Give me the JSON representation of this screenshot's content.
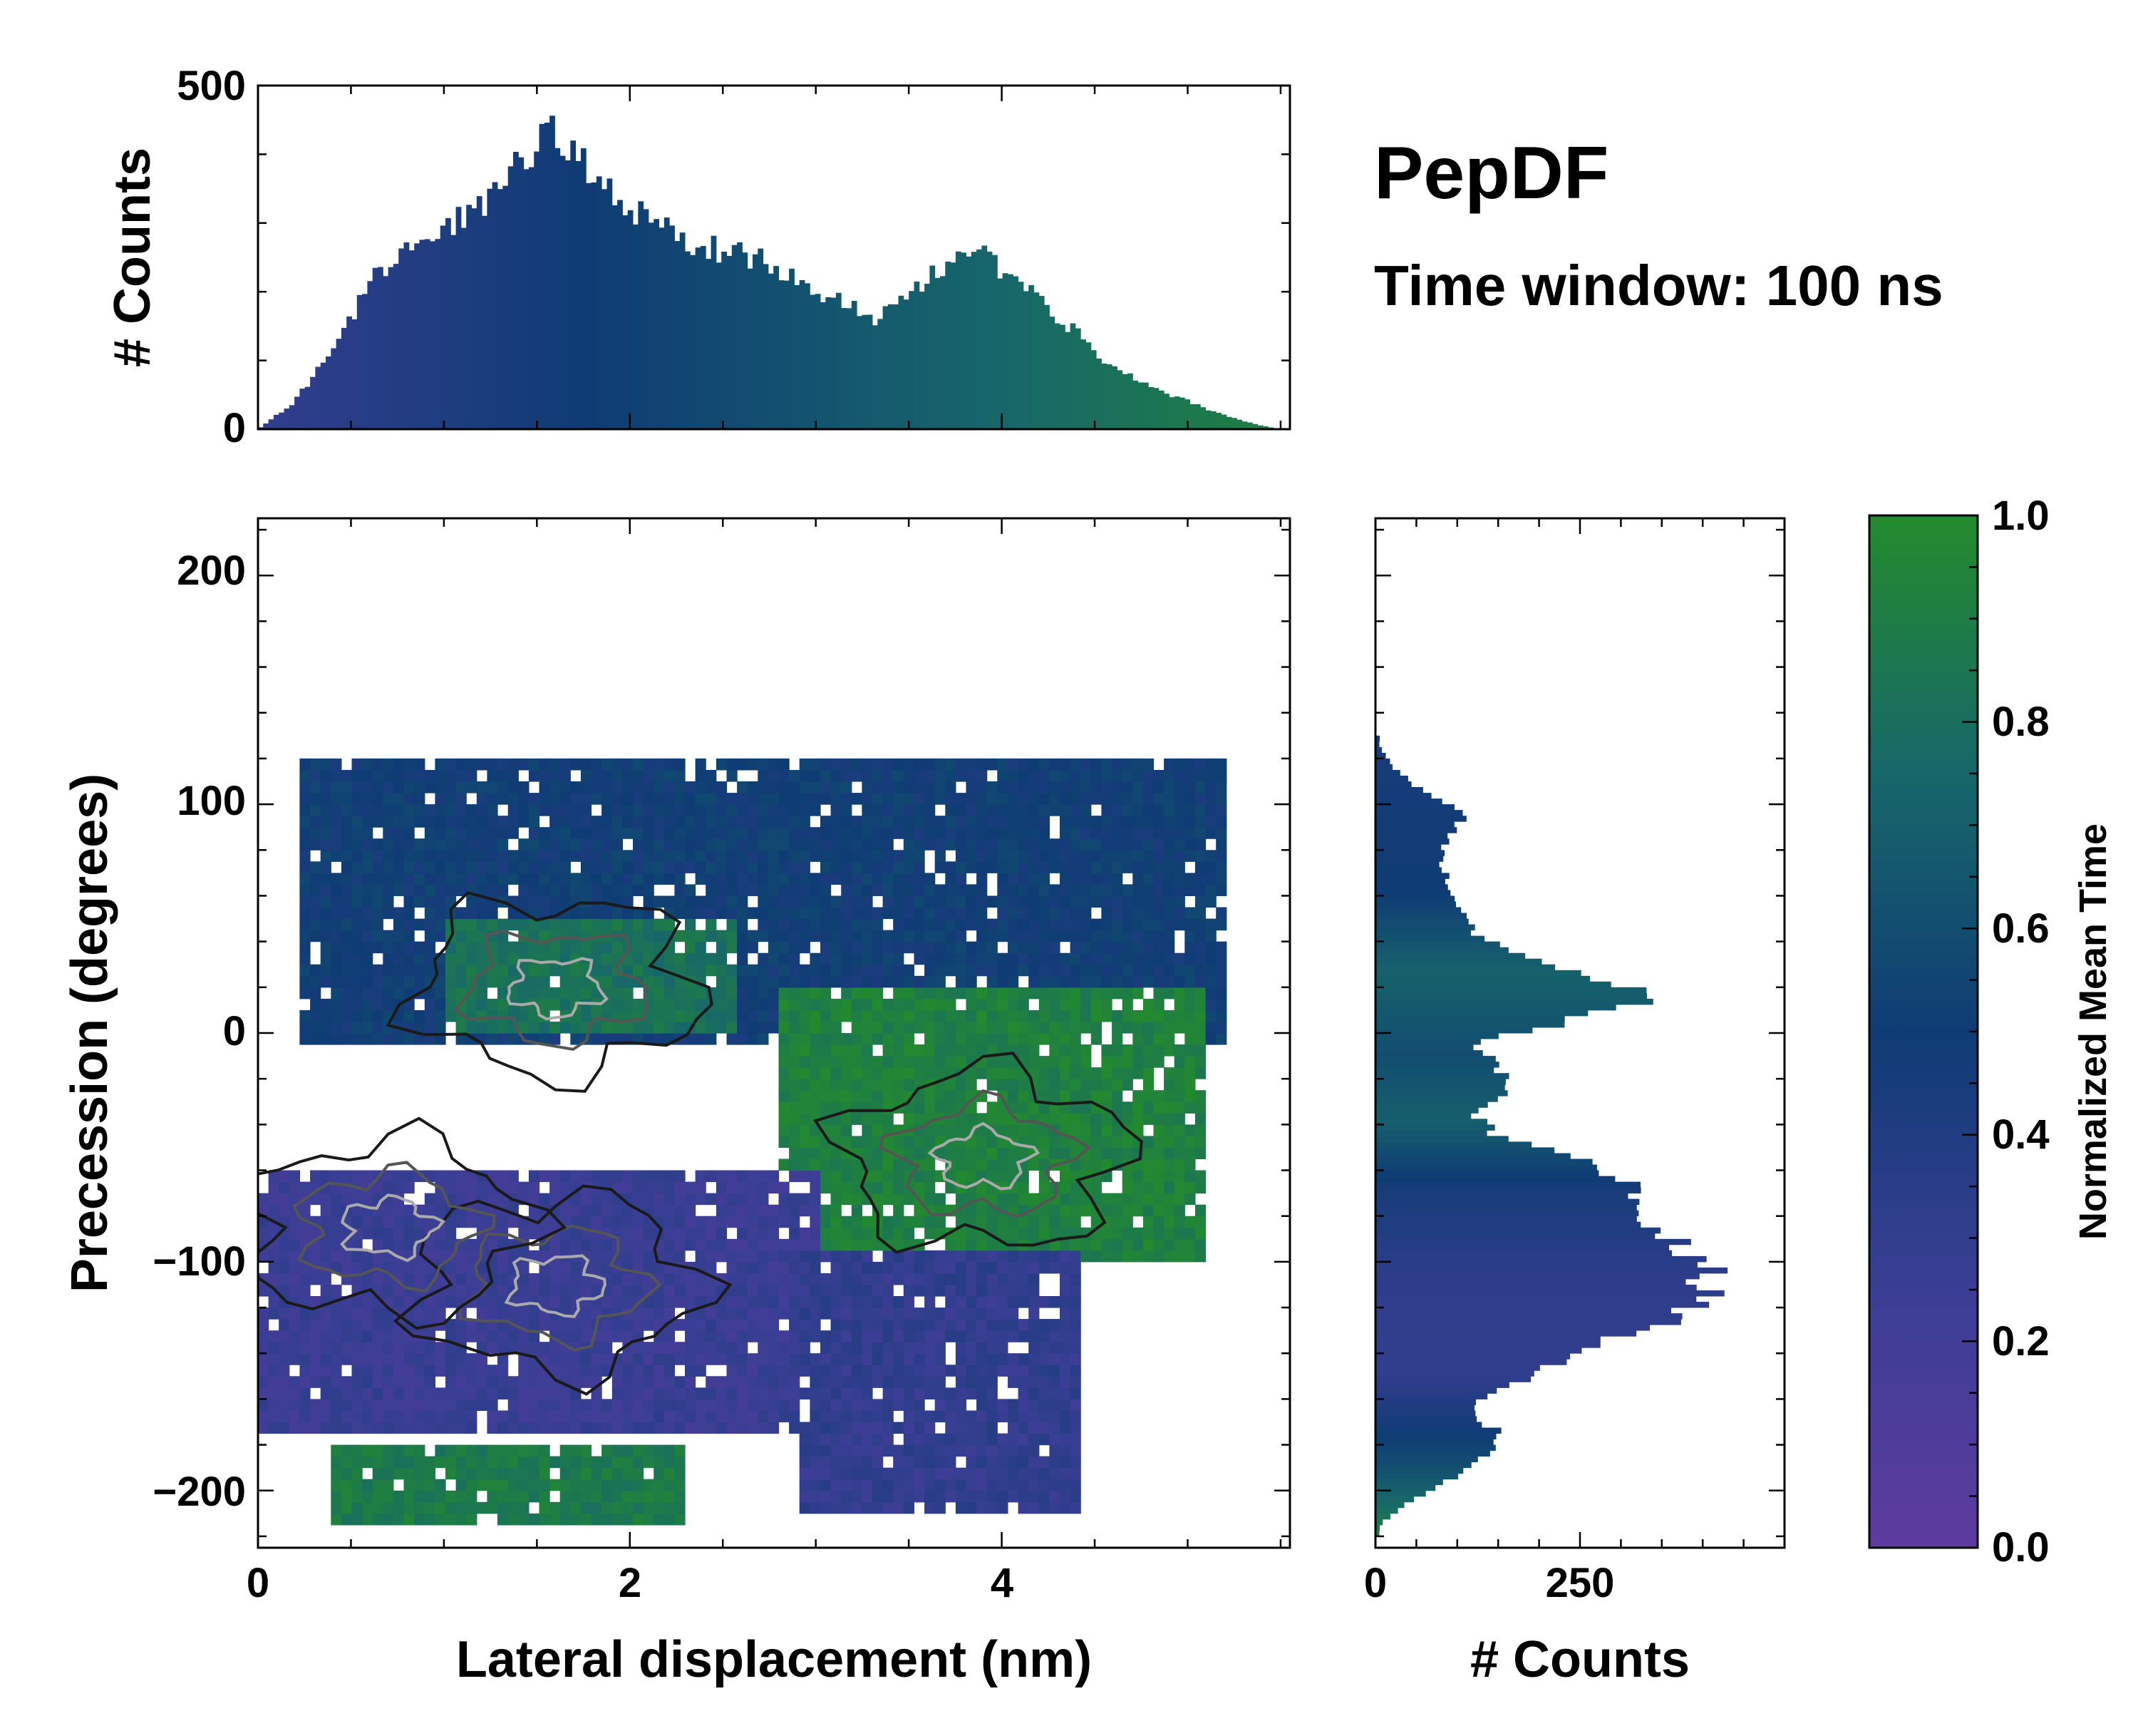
{
  "chart_data": [
    {
      "type": "bar",
      "panel": "top-marginal-histogram",
      "xlim": [
        0,
        5.55
      ],
      "ylim": [
        0,
        500
      ],
      "ylabel": "# Counts",
      "yticks": [
        "0",
        "500"
      ],
      "x": [
        0.0,
        0.2,
        0.4,
        0.6,
        0.8,
        1.0,
        1.2,
        1.4,
        1.55,
        1.7,
        1.9,
        2.1,
        2.3,
        2.5,
        2.7,
        2.9,
        3.1,
        3.3,
        3.5,
        3.7,
        3.85,
        4.0,
        4.2,
        4.4,
        4.6,
        4.8,
        5.0,
        5.2,
        5.4,
        5.5
      ],
      "values": [
        0,
        40,
        120,
        210,
        270,
        290,
        320,
        380,
        440,
        400,
        350,
        300,
        270,
        260,
        250,
        220,
        190,
        160,
        200,
        240,
        260,
        230,
        190,
        140,
        90,
        60,
        40,
        20,
        5,
        0
      ],
      "color_by": "Normalized Mean Time"
    },
    {
      "type": "heatmap",
      "panel": "main-2d-histogram",
      "xlabel": "Lateral displacement (nm)",
      "ylabel": "Precession (degrees)",
      "xlim": [
        0,
        5.55
      ],
      "ylim": [
        -225,
        225
      ],
      "xticks": [
        "0",
        "2",
        "4"
      ],
      "yticks": [
        "−200",
        "−100",
        "0",
        "100",
        "200"
      ],
      "colorbar": {
        "label": "Normalized Mean Time",
        "range": [
          0.0,
          1.0
        ],
        "ticks": [
          "0.0",
          "0.2",
          "0.4",
          "0.6",
          "0.8",
          "1.0"
        ]
      },
      "regions": [
        {
          "name": "upper band",
          "x": [
            0.2,
            5.2
          ],
          "y": [
            -5,
            120
          ],
          "mean_time": 0.5
        },
        {
          "name": "upper-left green core",
          "x": [
            1.0,
            2.6
          ],
          "y": [
            0,
            50
          ],
          "mean_time": 0.82
        },
        {
          "name": "right green cluster",
          "x": [
            2.8,
            5.1
          ],
          "y": [
            -100,
            20
          ],
          "mean_time": 0.92
        },
        {
          "name": "lower-left purple cluster",
          "x": [
            0.0,
            3.0
          ],
          "y": [
            -175,
            -60
          ],
          "mean_time": 0.25
        },
        {
          "name": "lower-right purple cluster",
          "x": [
            2.9,
            4.4
          ],
          "y": [
            -210,
            -95
          ],
          "mean_time": 0.3
        },
        {
          "name": "bottom green strip",
          "x": [
            0.4,
            2.3
          ],
          "y": [
            -215,
            -180
          ],
          "mean_time": 0.88
        }
      ],
      "density_peaks": [
        {
          "x": 1.6,
          "y": 20
        },
        {
          "x": 1.6,
          "y": -110
        },
        {
          "x": 0.7,
          "y": -85
        },
        {
          "x": 3.9,
          "y": -55
        }
      ]
    },
    {
      "type": "bar",
      "panel": "right-marginal-histogram",
      "orientation": "horizontal",
      "xlabel": "# Counts",
      "xlim": [
        0,
        500
      ],
      "xticks": [
        "0",
        "250"
      ],
      "y": [
        -215,
        -205,
        -195,
        -185,
        -175,
        -165,
        -155,
        -145,
        -135,
        -125,
        -115,
        -105,
        -95,
        -85,
        -75,
        -65,
        -55,
        -45,
        -35,
        -25,
        -15,
        -5,
        5,
        15,
        25,
        35,
        45,
        55,
        65,
        75,
        85,
        95,
        105,
        115,
        125
      ],
      "values": [
        5,
        40,
        90,
        140,
        150,
        110,
        160,
        220,
        280,
        360,
        400,
        410,
        380,
        350,
        330,
        310,
        250,
        150,
        120,
        160,
        150,
        120,
        230,
        350,
        260,
        160,
        120,
        100,
        90,
        80,
        90,
        110,
        60,
        25,
        5
      ],
      "color_by": "Normalized Mean Time"
    }
  ],
  "annotations": {
    "title": "PepDF",
    "subtitle": "Time window: 100 ns"
  }
}
